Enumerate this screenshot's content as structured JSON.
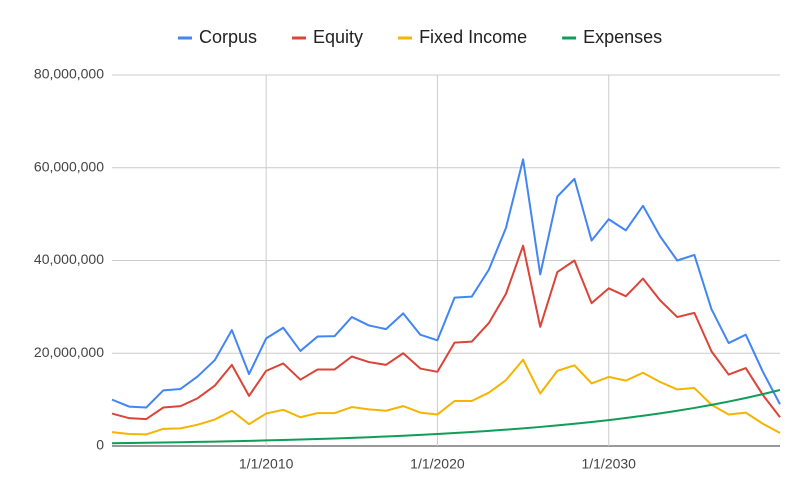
{
  "chart_data": {
    "type": "line",
    "x": [
      "1/1/2001",
      "1/1/2002",
      "1/1/2003",
      "1/1/2004",
      "1/1/2005",
      "1/1/2006",
      "1/1/2007",
      "1/1/2008",
      "1/1/2009",
      "1/1/2010",
      "1/1/2011",
      "1/1/2012",
      "1/1/2013",
      "1/1/2014",
      "1/1/2015",
      "1/1/2016",
      "1/1/2017",
      "1/1/2018",
      "1/1/2019",
      "1/1/2020",
      "1/1/2021",
      "1/1/2022",
      "1/1/2023",
      "1/1/2024",
      "1/1/2025",
      "1/1/2026",
      "1/1/2027",
      "1/1/2028",
      "1/1/2029",
      "1/1/2030",
      "1/1/2031",
      "1/1/2032",
      "1/1/2033",
      "1/1/2034",
      "1/1/2035",
      "1/1/2036",
      "1/1/2037",
      "1/1/2038",
      "1/1/2039",
      "1/1/2040"
    ],
    "series": [
      {
        "name": "Corpus",
        "color": "#4285f4",
        "values": [
          10000000,
          8500000,
          8300000,
          12000000,
          12300000,
          15000000,
          18500000,
          25000000,
          15500000,
          23200000,
          25500000,
          20500000,
          23600000,
          23700000,
          27800000,
          26000000,
          25200000,
          28600000,
          24000000,
          22800000,
          32000000,
          32200000,
          38000000,
          47000000,
          61800000,
          37000000,
          53800000,
          57600000,
          44300000,
          48900000,
          46500000,
          51800000,
          45200000,
          40000000,
          41200000,
          29500000,
          22200000,
          24000000,
          16000000,
          9000000
        ]
      },
      {
        "name": "Equity",
        "color": "#db4437",
        "values": [
          7000000,
          6000000,
          5800000,
          8300000,
          8600000,
          10300000,
          13000000,
          17500000,
          10800000,
          16200000,
          17800000,
          14300000,
          16500000,
          16500000,
          19300000,
          18100000,
          17500000,
          20000000,
          16700000,
          16000000,
          22300000,
          22500000,
          26500000,
          32800000,
          43200000,
          25700000,
          37500000,
          40000000,
          30800000,
          34000000,
          32300000,
          36100000,
          31400000,
          27800000,
          28700000,
          20400000,
          15400000,
          16800000,
          11000000,
          6200000
        ]
      },
      {
        "name": "Fixed Income",
        "color": "#f4b400",
        "values": [
          3000000,
          2600000,
          2500000,
          3700000,
          3800000,
          4600000,
          5700000,
          7600000,
          4700000,
          7000000,
          7800000,
          6200000,
          7100000,
          7100000,
          8400000,
          7900000,
          7600000,
          8600000,
          7200000,
          6800000,
          9700000,
          9700000,
          11500000,
          14200000,
          18600000,
          11300000,
          16200000,
          17400000,
          13500000,
          14900000,
          14100000,
          15800000,
          13800000,
          12200000,
          12500000,
          8900000,
          6800000,
          7200000,
          4800000,
          2800000
        ]
      },
      {
        "name": "Expenses",
        "color": "#0f9d58",
        "values": [
          600000,
          650000,
          700000,
          760000,
          820000,
          880000,
          950000,
          1030000,
          1110000,
          1200000,
          1300000,
          1400000,
          1510000,
          1630000,
          1760000,
          1900000,
          2060000,
          2220000,
          2400000,
          2590000,
          2800000,
          3020000,
          3260000,
          3520000,
          3800000,
          4110000,
          4440000,
          4790000,
          5180000,
          5590000,
          6040000,
          6520000,
          7040000,
          7610000,
          8210000,
          8870000,
          9580000,
          10350000,
          11180000,
          12070000
        ]
      }
    ],
    "xlim": [
      "1/1/2001",
      "1/1/2040"
    ],
    "xticks": [
      "1/1/2010",
      "1/1/2020",
      "1/1/2030"
    ],
    "ylim": [
      0,
      80000000
    ],
    "yticks": [
      0,
      {
        "value": 20000000,
        "label": "20,000,000"
      },
      {
        "value": 40000000,
        "label": "40,000,000"
      },
      {
        "value": 60000000,
        "label": "60,000,000"
      },
      {
        "value": 80000000,
        "label": "80,000,000"
      }
    ],
    "grid": true,
    "legend": "top"
  }
}
